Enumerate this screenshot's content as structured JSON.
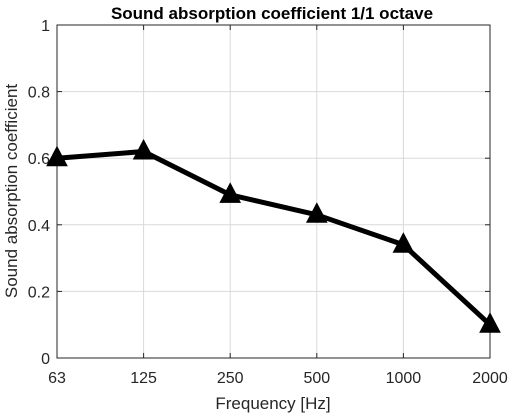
{
  "chart_data": {
    "type": "line",
    "title": "Sound absorption coefficient 1/1 octave",
    "xlabel": "Frequency [Hz]",
    "ylabel": "Sound absorption coefficient",
    "categories": [
      "63",
      "125",
      "250",
      "500",
      "1000",
      "2000"
    ],
    "values": [
      0.6,
      0.62,
      0.49,
      0.43,
      0.34,
      0.1
    ],
    "ylim": [
      0,
      1
    ],
    "yticks": [
      "0",
      "0.2",
      "0.4",
      "0.6",
      "0.8",
      "1"
    ],
    "grid": true,
    "marker": "triangle",
    "line_color": "#000000",
    "grid_color": "#d9d9d9"
  }
}
